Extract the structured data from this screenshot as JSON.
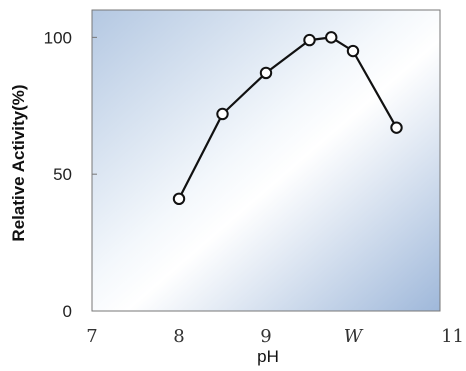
{
  "chart_data": {
    "type": "line",
    "x": [
      8.0,
      8.5,
      9.0,
      9.5,
      9.75,
      10.0,
      10.5
    ],
    "series": [
      {
        "values": [
          41,
          72,
          87,
          99,
          100,
          95,
          67
        ]
      }
    ],
    "xlabel": "pH",
    "ylabel": "Relative Activity(%)",
    "xlim": [
      7,
      11
    ],
    "ylim": [
      0,
      110
    ],
    "x_ticks": [
      7,
      8,
      9,
      10,
      11
    ],
    "x_tick_labels": [
      "7",
      "8",
      "9",
      "W",
      "11"
    ],
    "y_ticks": [
      0,
      50,
      100
    ],
    "y_tick_labels": [
      "0",
      "50",
      "100"
    ],
    "grid": false,
    "marker": "open-circle",
    "colors": {
      "line": "#111111",
      "frame": "#777777",
      "bg_edge": "#a9bfdc",
      "bg_center": "#ffffff"
    }
  }
}
